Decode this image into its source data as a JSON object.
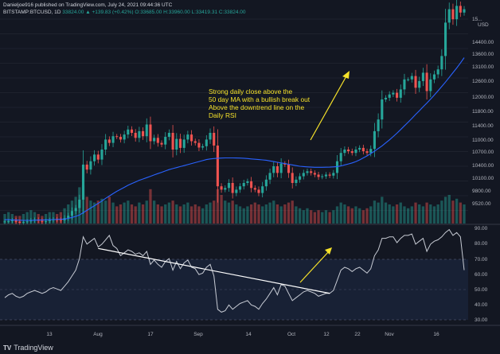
{
  "header": {
    "publisher_line": "Danieljoe916 published on TradingView.com, July 24, 2021 09:44:36 UTC",
    "symbol_line": "BITSTAMP:BTCUSD, 1D",
    "price": "33824.00",
    "change": "▲ +139.83 (+0.42%)",
    "ohlc": "O:33685.00 H:33960.00 L:33419.31 C:33824.00"
  },
  "annotation": {
    "text_lines": [
      "Strong daily close above the",
      "50 day MA with a bullish break out",
      "Above the downtrend line on the",
      "Daily RSI"
    ]
  },
  "footer": {
    "logo": "TV",
    "brand": "TradingView"
  },
  "price_axis": {
    "currency": "USD",
    "ticks": [
      "15...",
      "14400.00",
      "13600.00",
      "13100.00",
      "12600.00",
      "12000.00",
      "11800.00",
      "11400.00",
      "11000.00",
      "10700.00",
      "10400.00",
      "10100.00",
      "9800.00",
      "9520.00"
    ]
  },
  "rsi_axis": {
    "ticks": [
      "90.00",
      "80.00",
      "70.00",
      "60.00",
      "50.00",
      "40.00",
      "30.00"
    ]
  },
  "time_axis": {
    "ticks": [
      "13",
      "Aug",
      "17",
      "Sep",
      "14",
      "Oct",
      "12",
      "22",
      "Nov",
      "16"
    ]
  },
  "colors": {
    "background": "#131722",
    "up": "#26a69a",
    "down": "#ef5350",
    "ma": "#2962ff",
    "annotation": "#f5e12a",
    "trendline": "#ffffff",
    "rsi_line": "#c7cbd4",
    "rsi_band": "#1e2a45"
  },
  "chart_data": {
    "type": "candlestick",
    "symbol": "BITSTAMP:BTCUSD",
    "interval": "1D",
    "price_range": [
      9400,
      15400
    ],
    "rsi_range": [
      25,
      92
    ],
    "closes": [
      9250,
      9260,
      9280,
      9240,
      9210,
      9230,
      9250,
      9280,
      9300,
      9270,
      9240,
      9260,
      9290,
      9310,
      9300,
      9280,
      9350,
      9420,
      9560,
      9650,
      9900,
      10950,
      10800,
      11050,
      11250,
      11100,
      11400,
      11700,
      11600,
      11800,
      11780,
      11700,
      11850,
      12000,
      11900,
      11750,
      11950,
      11800,
      12150,
      11650,
      11750,
      11600,
      11550,
      11780,
      11900,
      11400,
      11720,
      11450,
      11700,
      11850,
      11650,
      11600,
      11460,
      11500,
      11700,
      11900,
      11520,
      10300,
      10200,
      10250,
      10400,
      10100,
      10200,
      10300,
      10400,
      10450,
      10250,
      10200,
      10100,
      10300,
      10500,
      10700,
      10900,
      10700,
      10980,
      10950,
      10700,
      10400,
      10500,
      10600,
      10700,
      10750,
      10700,
      10650,
      10580,
      10600,
      10650,
      10620,
      10700,
      11050,
      11300,
      11400,
      11350,
      11300,
      11400,
      11450,
      11350,
      11300,
      11420,
      11950,
      12300,
      12900,
      12950,
      13050,
      13100,
      12950,
      13200,
      13500,
      13500,
      13600,
      13250,
      13450,
      13700,
      13150,
      13500,
      13650,
      13800,
      14200,
      15200,
      15600,
      15300,
      15700,
      15500,
      15600
    ],
    "ma50": [
      9300,
      9300,
      9295,
      9290,
      9285,
      9280,
      9280,
      9280,
      9285,
      9290,
      9290,
      9295,
      9300,
      9305,
      9310,
      9315,
      9320,
      9340,
      9370,
      9400,
      9440,
      9510,
      9580,
      9650,
      9720,
      9790,
      9860,
      9940,
      10010,
      10080,
      10150,
      10210,
      10270,
      10330,
      10380,
      10430,
      10480,
      10520,
      10560,
      10600,
      10640,
      10680,
      10720,
      10760,
      10800,
      10830,
      10860,
      10890,
      10920,
      10950,
      10980,
      11010,
      11040,
      11070,
      11100,
      11120,
      11130,
      11140,
      11145,
      11150,
      11150,
      11150,
      11148,
      11145,
      11140,
      11130,
      11120,
      11110,
      11100,
      11090,
      11080,
      11060,
      11040,
      11020,
      11000,
      10980,
      10960,
      10940,
      10920,
      10900,
      10890,
      10880,
      10875,
      10870,
      10870,
      10870,
      10872,
      10875,
      10880,
      10890,
      10910,
      10940,
      10970,
      11000,
      11040,
      11090,
      11150,
      11210,
      11280,
      11350,
      11430,
      11510,
      11600,
      11690,
      11790,
      11890,
      12000,
      12110,
      12220,
      12330,
      12450,
      12560,
      12680,
      12790,
      12910,
      13030,
      13160,
      13290,
      13420,
      13560,
      13700,
      13840,
      13990,
      14150
    ],
    "volume": [
      0.25,
      0.3,
      0.25,
      0.2,
      0.2,
      0.25,
      0.3,
      0.35,
      0.3,
      0.25,
      0.2,
      0.25,
      0.3,
      0.3,
      0.25,
      0.3,
      0.4,
      0.5,
      0.6,
      0.7,
      0.95,
      1.0,
      0.7,
      0.6,
      0.55,
      0.6,
      0.65,
      0.6,
      0.7,
      0.55,
      0.45,
      0.5,
      0.55,
      0.6,
      0.5,
      0.45,
      0.55,
      0.5,
      0.6,
      0.9,
      0.6,
      0.5,
      0.45,
      0.5,
      0.55,
      0.6,
      0.5,
      0.45,
      0.5,
      0.55,
      0.45,
      0.5,
      0.45,
      0.4,
      0.5,
      0.55,
      0.6,
      0.9,
      0.75,
      0.6,
      0.55,
      0.6,
      0.5,
      0.45,
      0.4,
      0.45,
      0.5,
      0.55,
      0.5,
      0.45,
      0.5,
      0.55,
      0.6,
      0.5,
      0.45,
      0.5,
      0.55,
      0.6,
      0.45,
      0.4,
      0.35,
      0.4,
      0.35,
      0.3,
      0.35,
      0.3,
      0.35,
      0.3,
      0.35,
      0.45,
      0.55,
      0.5,
      0.45,
      0.4,
      0.45,
      0.4,
      0.35,
      0.4,
      0.45,
      0.6,
      0.55,
      0.7,
      0.55,
      0.5,
      0.45,
      0.5,
      0.55,
      0.45,
      0.4,
      0.45,
      0.55,
      0.5,
      0.45,
      0.55,
      0.5,
      0.45,
      0.5,
      0.6,
      0.7,
      0.75,
      0.6,
      0.65,
      0.55,
      0.5
    ],
    "rsi": [
      43,
      45,
      46,
      44,
      43,
      44,
      46,
      47,
      48,
      47,
      46,
      47,
      49,
      50,
      49,
      48,
      51,
      54,
      58,
      62,
      70,
      85,
      80,
      82,
      84,
      78,
      80,
      83,
      86,
      79,
      77,
      72,
      74,
      76,
      75,
      73,
      74,
      72,
      75,
      66,
      69,
      66,
      64,
      68,
      70,
      62,
      68,
      63,
      67,
      69,
      64,
      63,
      59,
      60,
      64,
      66,
      58,
      35,
      33,
      34,
      38,
      35,
      37,
      39,
      40,
      41,
      38,
      37,
      35,
      39,
      42,
      46,
      50,
      45,
      52,
      51,
      46,
      41,
      43,
      45,
      47,
      48,
      47,
      46,
      44,
      45,
      46,
      46,
      48,
      55,
      62,
      64,
      63,
      61,
      63,
      64,
      62,
      60,
      63,
      72,
      76,
      84,
      84,
      85,
      85,
      81,
      84,
      86,
      86,
      87,
      80,
      82,
      84,
      75,
      80,
      82,
      83,
      85,
      88,
      90,
      86,
      88,
      85,
      62
    ],
    "trendline_rsi": {
      "from": [
        25,
        77
      ],
      "to": [
        87,
        46
      ]
    }
  }
}
